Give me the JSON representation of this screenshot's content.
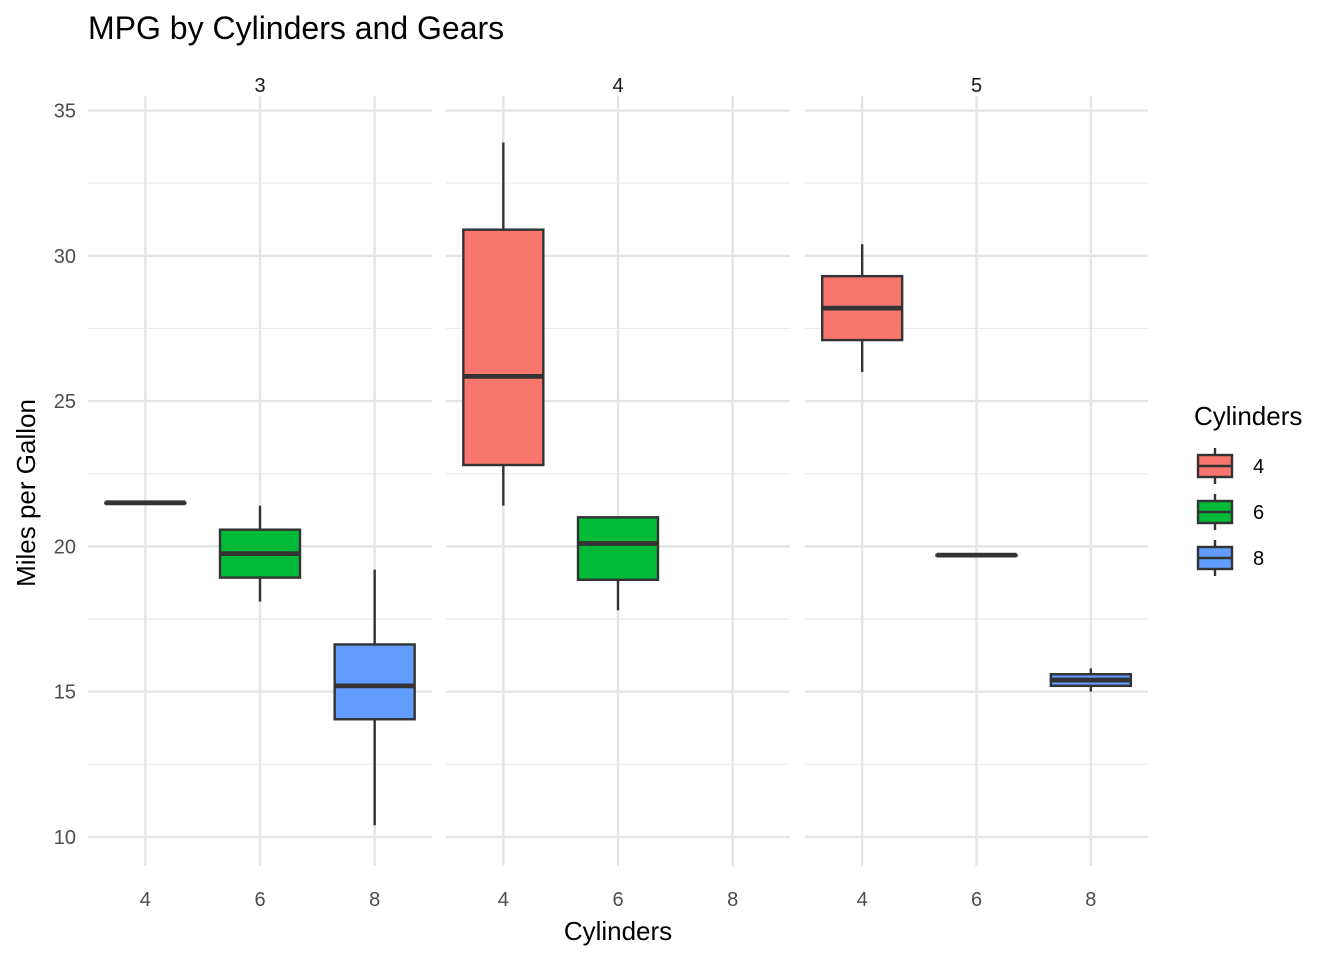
{
  "chart_data": {
    "type": "boxplot",
    "title": "MPG by Cylinders and Gears",
    "xlabel": "Cylinders",
    "ylabel": "Miles per Gallon",
    "ylim": [
      9,
      35.5
    ],
    "y_major_ticks": [
      10,
      15,
      20,
      25,
      30,
      35
    ],
    "y_minor_ticks": [
      12.5,
      17.5,
      22.5,
      27.5,
      32.5
    ],
    "categories": [
      "4",
      "6",
      "8"
    ],
    "colors": {
      "4": "#F8766D",
      "6": "#00BA38",
      "8": "#619CFF"
    },
    "legend": {
      "title": "Cylinders",
      "entries": [
        {
          "label": "4",
          "color": "#F8766D"
        },
        {
          "label": "6",
          "color": "#00BA38"
        },
        {
          "label": "8",
          "color": "#619CFF"
        }
      ]
    },
    "facets": [
      {
        "label": "3",
        "boxes": [
          {
            "category": "4",
            "min": 21.5,
            "q1": 21.5,
            "median": 21.5,
            "q3": 21.5,
            "max": 21.5
          },
          {
            "category": "6",
            "min": 18.1,
            "q1": 18.925,
            "median": 19.75,
            "q3": 20.575,
            "max": 21.4
          },
          {
            "category": "8",
            "min": 10.4,
            "q1": 14.05,
            "median": 15.2,
            "q3": 16.625,
            "max": 19.2
          }
        ]
      },
      {
        "label": "4",
        "boxes": [
          {
            "category": "4",
            "min": 21.4,
            "q1": 22.8,
            "median": 25.85,
            "q3": 30.9,
            "max": 33.9
          },
          {
            "category": "6",
            "min": 17.8,
            "q1": 18.85,
            "median": 20.1,
            "q3": 21.0,
            "max": 21.0
          }
        ]
      },
      {
        "label": "5",
        "boxes": [
          {
            "category": "4",
            "min": 26.0,
            "q1": 27.1,
            "median": 28.2,
            "q3": 29.3,
            "max": 30.4
          },
          {
            "category": "6",
            "min": 19.7,
            "q1": 19.7,
            "median": 19.7,
            "q3": 19.7,
            "max": 19.7
          },
          {
            "category": "8",
            "min": 15.0,
            "q1": 15.2,
            "median": 15.4,
            "q3": 15.6,
            "max": 15.8
          }
        ]
      }
    ]
  }
}
